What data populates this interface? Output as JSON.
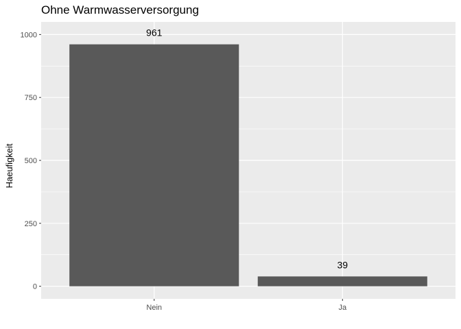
{
  "chart_data": {
    "type": "bar",
    "title": "Ohne Warmwasserversorgung",
    "xlabel": "",
    "ylabel": "Haeufigkeit",
    "categories": [
      "Nein",
      "Ja"
    ],
    "values": [
      961,
      39
    ],
    "data_labels": [
      "961",
      "39"
    ],
    "ylim": [
      0,
      1000
    ],
    "yticks": [
      0,
      250,
      500,
      750,
      1000
    ],
    "ytick_labels": [
      "0",
      "250",
      "500",
      "750",
      "1000"
    ],
    "grid": true,
    "legend": "none",
    "colors": {
      "bar": "#595959",
      "panel": "#ebebeb",
      "grid_major": "#ffffff",
      "tick_text": "#4d4d4d"
    }
  }
}
